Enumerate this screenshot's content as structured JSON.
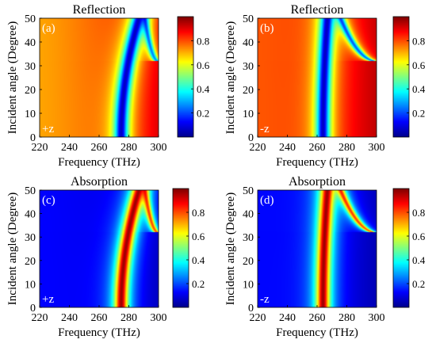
{
  "figure": {
    "colormap": "jet",
    "cmap_stops": [
      "#00008f",
      "#0000ff",
      "#0080ff",
      "#00ffff",
      "#80ff80",
      "#ffff00",
      "#ff8000",
      "#ff0000",
      "#800000"
    ]
  },
  "chart_data": [
    {
      "type": "heatmap",
      "panel_label": "(a)",
      "title": "Reflection",
      "direction": "+z",
      "xlabel": "Frequency (THz)",
      "ylabel": "Incident angle (Degree)",
      "xlim": [
        220,
        300
      ],
      "ylim": [
        0,
        50
      ],
      "xticks": [
        "220",
        "240",
        "260",
        "280",
        "300"
      ],
      "yticks": [
        "0",
        "10",
        "20",
        "30",
        "40",
        "50"
      ],
      "colorbar": {
        "ticks": [
          "0.2",
          "0.4",
          "0.6",
          "0.8"
        ],
        "range": [
          0,
          1
        ]
      },
      "features": {
        "resonance1": {
          "freq_at_0deg": 275,
          "freq_at_50deg": 287,
          "depth": 0.93,
          "width_THz": 4.5
        },
        "resonance2": {
          "freq_at_32deg": 300,
          "freq_at_50deg": 291,
          "depth": 0.7,
          "width_THz": 2.2
        },
        "background_low_freq": 0.72,
        "background_high_freq": 0.93
      }
    },
    {
      "type": "heatmap",
      "panel_label": "(b)",
      "title": "Reflection",
      "direction": "-z",
      "xlabel": "Frequency (THz)",
      "ylabel": "Incident angle (Degree)",
      "xlim": [
        220,
        300
      ],
      "ylim": [
        0,
        50
      ],
      "xticks": [
        "220",
        "240",
        "260",
        "280",
        "300"
      ],
      "yticks": [
        "0",
        "10",
        "20",
        "30",
        "40",
        "50"
      ],
      "colorbar": {
        "ticks": [
          "0.2",
          "0.4",
          "0.6",
          "0.8"
        ],
        "range": [
          0,
          1
        ]
      },
      "features": {
        "resonance1": {
          "freq_at_0deg": 264,
          "freq_at_50deg": 267,
          "depth": 0.93,
          "width_THz": 4.5
        },
        "resonance2": {
          "freq_at_32deg": 300,
          "freq_at_50deg": 276,
          "depth": 0.75,
          "width_THz": 2.6
        },
        "background_low_freq": 0.8,
        "background_high_freq": 0.95
      }
    },
    {
      "type": "heatmap",
      "panel_label": "(c)",
      "title": "Absorption",
      "direction": "+z",
      "xlabel": "Frequency (THz)",
      "ylabel": "Incident angle (Degree)",
      "xlim": [
        220,
        300
      ],
      "ylim": [
        0,
        50
      ],
      "xticks": [
        "220",
        "240",
        "260",
        "280",
        "300"
      ],
      "yticks": [
        "0",
        "10",
        "20",
        "30",
        "40",
        "50"
      ],
      "colorbar": {
        "ticks": [
          "0.2",
          "0.4",
          "0.6",
          "0.8"
        ],
        "range": [
          0,
          1
        ]
      },
      "features": {
        "resonance1": {
          "freq_at_0deg": 275,
          "freq_at_50deg": 287,
          "peak": 0.97,
          "width_THz": 4.5
        },
        "resonance2": {
          "freq_at_32deg": 300,
          "freq_at_50deg": 291,
          "peak": 0.75,
          "width_THz": 2.2
        },
        "background_low_freq": 0.12,
        "background_high_freq": 0.03
      }
    },
    {
      "type": "heatmap",
      "panel_label": "(d)",
      "title": "Absorption",
      "direction": "-z",
      "xlabel": "Frequency (THz)",
      "ylabel": "Incident angle (Degree)",
      "xlim": [
        220,
        300
      ],
      "ylim": [
        0,
        50
      ],
      "xticks": [
        "220",
        "240",
        "260",
        "280",
        "300"
      ],
      "yticks": [
        "0",
        "10",
        "20",
        "30",
        "40",
        "50"
      ],
      "colorbar": {
        "ticks": [
          "0.2",
          "0.4",
          "0.6",
          "0.8"
        ],
        "range": [
          0,
          1
        ]
      },
      "features": {
        "resonance1": {
          "freq_at_0deg": 264,
          "freq_at_50deg": 267,
          "peak": 0.97,
          "width_THz": 4.5
        },
        "resonance2": {
          "freq_at_32deg": 300,
          "freq_at_50deg": 276,
          "peak": 0.75,
          "width_THz": 2.6
        },
        "background_low_freq": 0.12,
        "background_high_freq": 0.03
      }
    }
  ]
}
